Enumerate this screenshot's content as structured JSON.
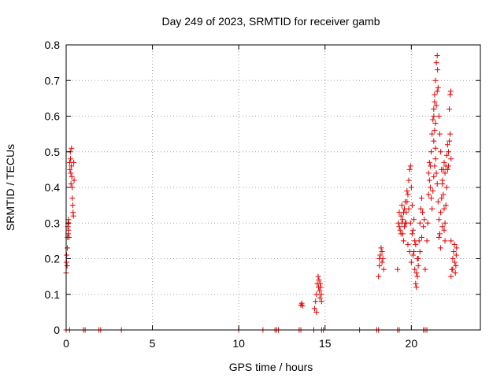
{
  "chart_data": {
    "type": "scatter",
    "title": "Day 249 of 2023, SRMTID for receiver gamb",
    "xlabel": "GPS time / hours",
    "ylabel": "SRMTID / TECUs",
    "xlim": [
      0,
      24
    ],
    "ylim": [
      0,
      0.8
    ],
    "grid": true,
    "marker": "+",
    "marker_color": "#e00000",
    "xticks": [
      0,
      5,
      10,
      15,
      20
    ],
    "xtick_labels": [
      "0",
      "5",
      "10",
      "15",
      "20"
    ],
    "yticks": [
      0,
      0.1,
      0.2,
      0.3,
      0.4,
      0.5,
      0.6,
      0.7,
      0.8
    ],
    "ytick_labels": [
      "0",
      "0.1",
      "0.2",
      "0.3",
      "0.4",
      "0.5",
      "0.6",
      "0.7",
      "0.8"
    ],
    "series": [
      {
        "name": "SRMTID",
        "points": [
          [
            0.0,
            0.16
          ],
          [
            0.02,
            0.19
          ],
          [
            0.03,
            0.21
          ],
          [
            0.05,
            0.18
          ],
          [
            0.07,
            0.23
          ],
          [
            0.08,
            0.26
          ],
          [
            0.1,
            0.29
          ],
          [
            0.11,
            0.3
          ],
          [
            0.12,
            0.27
          ],
          [
            0.13,
            0.31
          ],
          [
            0.14,
            0.28
          ],
          [
            0.15,
            0.3
          ],
          [
            0.17,
            0.26
          ],
          [
            0.2,
            0.47
          ],
          [
            0.22,
            0.45
          ],
          [
            0.24,
            0.5
          ],
          [
            0.25,
            0.48
          ],
          [
            0.27,
            0.44
          ],
          [
            0.28,
            0.41
          ],
          [
            0.3,
            0.46
          ],
          [
            0.31,
            0.51
          ],
          [
            0.33,
            0.43
          ],
          [
            0.35,
            0.4
          ],
          [
            0.36,
            0.37
          ],
          [
            0.38,
            0.35
          ],
          [
            0.4,
            0.33
          ],
          [
            0.42,
            0.32
          ],
          [
            0.44,
            0.47
          ],
          [
            0.46,
            0.42
          ],
          [
            0.0,
            0.0
          ],
          [
            0.2,
            0.0
          ],
          [
            1.0,
            0.0
          ],
          [
            1.1,
            0.0
          ],
          [
            1.9,
            0.0
          ],
          [
            2.0,
            0.0
          ],
          [
            3.2,
            0.0
          ],
          [
            10.0,
            0.0
          ],
          [
            11.4,
            0.0
          ],
          [
            12.1,
            0.0
          ],
          [
            12.2,
            0.0
          ],
          [
            12.3,
            0.0
          ],
          [
            13.5,
            0.0
          ],
          [
            13.6,
            0.0
          ],
          [
            14.35,
            0.0
          ],
          [
            14.8,
            0.0
          ],
          [
            14.9,
            0.0
          ],
          [
            17.0,
            0.0
          ],
          [
            18.0,
            0.0
          ],
          [
            18.1,
            0.0
          ],
          [
            19.2,
            0.0
          ],
          [
            19.3,
            0.0
          ],
          [
            20.7,
            0.0
          ],
          [
            20.8,
            0.0
          ],
          [
            20.9,
            0.0
          ],
          [
            13.6,
            0.07
          ],
          [
            13.65,
            0.075
          ],
          [
            13.7,
            0.068
          ],
          [
            14.4,
            0.06
          ],
          [
            14.45,
            0.08
          ],
          [
            14.5,
            0.1
          ],
          [
            14.55,
            0.13
          ],
          [
            14.6,
            0.15
          ],
          [
            14.62,
            0.12
          ],
          [
            14.65,
            0.14
          ],
          [
            14.68,
            0.11
          ],
          [
            14.7,
            0.09
          ],
          [
            14.72,
            0.13
          ],
          [
            14.75,
            0.12
          ],
          [
            14.78,
            0.1
          ],
          [
            14.8,
            0.08
          ],
          [
            14.5,
            0.05
          ],
          [
            18.1,
            0.15
          ],
          [
            18.15,
            0.18
          ],
          [
            18.2,
            0.21
          ],
          [
            18.25,
            0.23
          ],
          [
            18.3,
            0.19
          ],
          [
            18.35,
            0.2
          ],
          [
            18.4,
            0.17
          ],
          [
            18.15,
            0.2
          ],
          [
            18.3,
            0.22
          ],
          [
            19.2,
            0.17
          ],
          [
            19.25,
            0.3
          ],
          [
            19.3,
            0.33
          ],
          [
            19.35,
            0.28
          ],
          [
            19.4,
            0.27
          ],
          [
            19.45,
            0.35
          ],
          [
            19.5,
            0.31
          ],
          [
            19.55,
            0.25
          ],
          [
            19.6,
            0.29
          ],
          [
            19.65,
            0.3
          ],
          [
            19.7,
            0.33
          ],
          [
            19.75,
            0.36
          ],
          [
            19.8,
            0.38
          ],
          [
            19.85,
            0.42
          ],
          [
            19.9,
            0.45
          ],
          [
            19.95,
            0.46
          ],
          [
            20.0,
            0.4
          ],
          [
            20.05,
            0.35
          ],
          [
            20.1,
            0.28
          ],
          [
            20.15,
            0.22
          ],
          [
            20.2,
            0.17
          ],
          [
            20.25,
            0.13
          ],
          [
            20.3,
            0.12
          ],
          [
            20.35,
            0.15
          ],
          [
            20.4,
            0.2
          ],
          [
            20.45,
            0.25
          ],
          [
            20.5,
            0.3
          ],
          [
            20.55,
            0.34
          ],
          [
            20.6,
            0.37
          ],
          [
            20.65,
            0.33
          ],
          [
            20.7,
            0.29
          ],
          [
            20.75,
            0.31
          ],
          [
            19.3,
            0.29
          ],
          [
            19.4,
            0.32
          ],
          [
            19.5,
            0.27
          ],
          [
            19.6,
            0.34
          ],
          [
            19.7,
            0.3
          ],
          [
            19.8,
            0.24
          ],
          [
            19.9,
            0.22
          ],
          [
            20.0,
            0.19
          ],
          [
            20.1,
            0.21
          ],
          [
            20.2,
            0.25
          ],
          [
            20.3,
            0.16
          ],
          [
            20.4,
            0.18
          ],
          [
            20.5,
            0.22
          ],
          [
            20.6,
            0.26
          ],
          [
            19.45,
            0.3
          ],
          [
            19.55,
            0.33
          ],
          [
            19.65,
            0.36
          ],
          [
            19.75,
            0.39
          ],
          [
            19.85,
            0.34
          ],
          [
            19.95,
            0.3
          ],
          [
            20.05,
            0.27
          ],
          [
            20.15,
            0.31
          ],
          [
            20.25,
            0.24
          ],
          [
            20.35,
            0.2
          ],
          [
            20.8,
            0.17
          ],
          [
            20.9,
            0.25
          ],
          [
            20.95,
            0.3
          ],
          [
            21.0,
            0.38
          ],
          [
            21.05,
            0.42
          ],
          [
            21.1,
            0.46
          ],
          [
            21.15,
            0.5
          ],
          [
            21.2,
            0.55
          ],
          [
            21.25,
            0.59
          ],
          [
            21.3,
            0.62
          ],
          [
            21.35,
            0.66
          ],
          [
            21.4,
            0.7
          ],
          [
            21.45,
            0.75
          ],
          [
            21.5,
            0.77
          ],
          [
            21.52,
            0.73
          ],
          [
            21.55,
            0.68
          ],
          [
            21.6,
            0.6
          ],
          [
            21.65,
            0.55
          ],
          [
            21.7,
            0.5
          ],
          [
            21.75,
            0.45
          ],
          [
            21.8,
            0.42
          ],
          [
            21.85,
            0.38
          ],
          [
            21.9,
            0.34
          ],
          [
            21.95,
            0.3
          ],
          [
            22.0,
            0.35
          ],
          [
            22.05,
            0.4
          ],
          [
            22.1,
            0.45
          ],
          [
            22.15,
            0.5
          ],
          [
            22.2,
            0.53
          ],
          [
            22.25,
            0.55
          ],
          [
            22.3,
            0.48
          ],
          [
            21.0,
            0.44
          ],
          [
            21.05,
            0.47
          ],
          [
            21.1,
            0.4
          ],
          [
            21.15,
            0.37
          ],
          [
            21.2,
            0.34
          ],
          [
            21.25,
            0.39
          ],
          [
            21.3,
            0.43
          ],
          [
            21.35,
            0.46
          ],
          [
            21.4,
            0.48
          ],
          [
            21.45,
            0.44
          ],
          [
            21.5,
            0.41
          ],
          [
            21.55,
            0.36
          ],
          [
            21.6,
            0.31
          ],
          [
            21.65,
            0.27
          ],
          [
            21.7,
            0.33
          ],
          [
            21.75,
            0.37
          ],
          [
            21.8,
            0.41
          ],
          [
            21.85,
            0.45
          ],
          [
            21.9,
            0.47
          ],
          [
            21.95,
            0.44
          ],
          [
            22.0,
            0.46
          ],
          [
            22.05,
            0.49
          ],
          [
            22.1,
            0.52
          ],
          [
            22.15,
            0.46
          ],
          [
            21.3,
            0.6
          ],
          [
            21.35,
            0.64
          ],
          [
            21.4,
            0.58
          ],
          [
            21.45,
            0.63
          ],
          [
            21.5,
            0.67
          ],
          [
            21.3,
            0.53
          ],
          [
            21.35,
            0.56
          ],
          [
            21.4,
            0.51
          ],
          [
            21.6,
            0.26
          ],
          [
            21.7,
            0.23
          ],
          [
            21.8,
            0.29
          ],
          [
            21.9,
            0.28
          ],
          [
            21.95,
            0.25
          ],
          [
            22.2,
            0.62
          ],
          [
            22.25,
            0.66
          ],
          [
            22.28,
            0.67
          ],
          [
            22.3,
            0.15
          ],
          [
            22.35,
            0.17
          ],
          [
            22.4,
            0.2
          ],
          [
            22.45,
            0.22
          ],
          [
            22.5,
            0.24
          ],
          [
            22.52,
            0.19
          ],
          [
            22.55,
            0.16
          ],
          [
            22.58,
            0.18
          ],
          [
            22.6,
            0.21
          ],
          [
            22.62,
            0.23
          ],
          [
            22.3,
            0.25
          ],
          [
            22.4,
            0.17
          ]
        ]
      }
    ]
  }
}
